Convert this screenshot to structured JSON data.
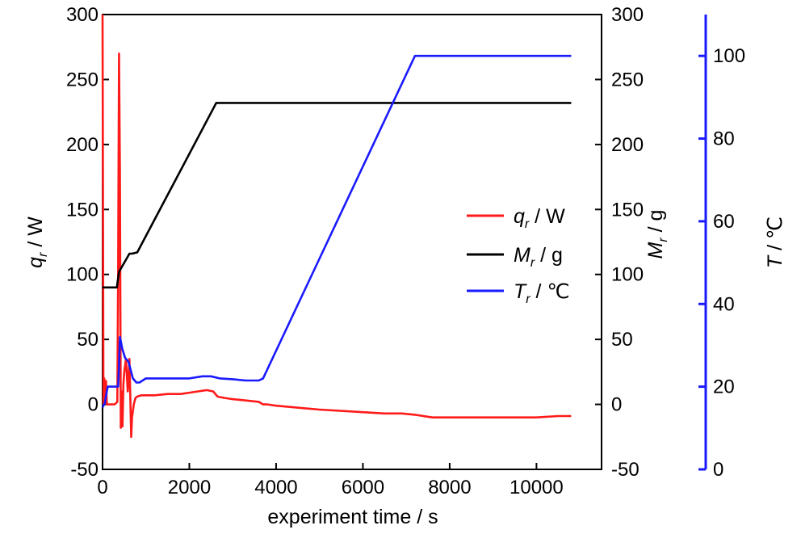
{
  "chart_data": {
    "type": "line",
    "xlabel": "experiment time / s",
    "x_ticks": [
      "0",
      "2000",
      "4000",
      "6000",
      "8000",
      "10000"
    ],
    "xlim": [
      0,
      11500
    ],
    "axes": {
      "left": {
        "label_main": "q",
        "label_sub": "r",
        "label_rest": " / W",
        "ylim": [
          -50,
          300
        ],
        "ticks": [
          "300",
          "250",
          "200",
          "150",
          "100",
          "50",
          "0",
          "-50"
        ],
        "color": "#000000"
      },
      "right1": {
        "label_main": "M",
        "label_sub": "r",
        "label_rest": " / g",
        "ylim": [
          -50,
          300
        ],
        "ticks": [
          "300",
          "250",
          "200",
          "150",
          "100",
          "50",
          "0",
          "-50"
        ],
        "color": "#000000"
      },
      "right2": {
        "label_main": "T",
        "label_sub": "",
        "label_rest": " / ℃",
        "ylim": [
          0,
          110
        ],
        "ticks": [
          "100",
          "80",
          "60",
          "40",
          "20",
          "0"
        ],
        "color": "#1a1aff"
      }
    },
    "legend": {
      "placement": "center-right",
      "entries": [
        {
          "main": "q",
          "sub": "r",
          "rest": " / W",
          "color": "#ff1a1a"
        },
        {
          "main": "M",
          "sub": "r",
          "rest": " / g",
          "color": "#000000"
        },
        {
          "main": "T",
          "sub": "r",
          "rest": " / ℃",
          "color": "#1a1aff"
        }
      ]
    },
    "series": [
      {
        "name": "qr / W",
        "axis": "left",
        "color": "#ff1a1a",
        "x": [
          0,
          20,
          40,
          60,
          80,
          100,
          150,
          200,
          280,
          340,
          360,
          380,
          400,
          420,
          440,
          460,
          480,
          500,
          540,
          580,
          620,
          640,
          660,
          680,
          700,
          720,
          760,
          800,
          900,
          1000,
          1200,
          1500,
          1800,
          2000,
          2200,
          2400,
          2550,
          2650,
          2800,
          3000,
          3300,
          3600,
          3700,
          3800,
          4000,
          5000,
          6000,
          6500,
          6900,
          7200,
          7600,
          8000,
          9000,
          10000,
          10500,
          10800
        ],
        "y": [
          300,
          0,
          20,
          5,
          18,
          0,
          0,
          0,
          0,
          2,
          100,
          270,
          180,
          -18,
          10,
          -17,
          15,
          25,
          35,
          10,
          35,
          5,
          -25,
          -10,
          -5,
          0,
          5,
          6,
          7,
          7,
          7,
          8,
          8,
          9,
          10,
          11,
          10,
          6,
          5,
          4,
          3,
          2,
          0,
          0,
          -1,
          -4,
          -6,
          -7,
          -7,
          -8,
          -10,
          -10,
          -10,
          -10,
          -9,
          -9
        ]
      },
      {
        "name": "Mr / g",
        "axis": "right1",
        "color": "#000000",
        "x": [
          0,
          330,
          380,
          620,
          680,
          800,
          2620,
          10800
        ],
        "y": [
          90,
          90,
          102,
          116,
          116,
          117,
          232,
          232
        ]
      },
      {
        "name": "Tr / ℃",
        "axis": "right2",
        "color": "#1a1aff",
        "x": [
          0,
          50,
          100,
          120,
          200,
          300,
          360,
          380,
          400,
          420,
          440,
          460,
          520,
          600,
          700,
          780,
          850,
          1000,
          1500,
          2000,
          2300,
          2500,
          2700,
          3000,
          3300,
          3600,
          3700,
          7200,
          8000,
          9000,
          10000,
          10800
        ],
        "y": [
          15,
          16,
          19,
          20,
          20,
          20,
          20,
          25,
          32,
          31,
          30,
          29,
          27,
          26,
          22,
          21,
          21,
          22,
          22,
          22,
          22.5,
          22.5,
          22,
          21.8,
          21.5,
          21.5,
          22,
          100,
          100,
          100,
          100,
          100
        ]
      }
    ]
  }
}
